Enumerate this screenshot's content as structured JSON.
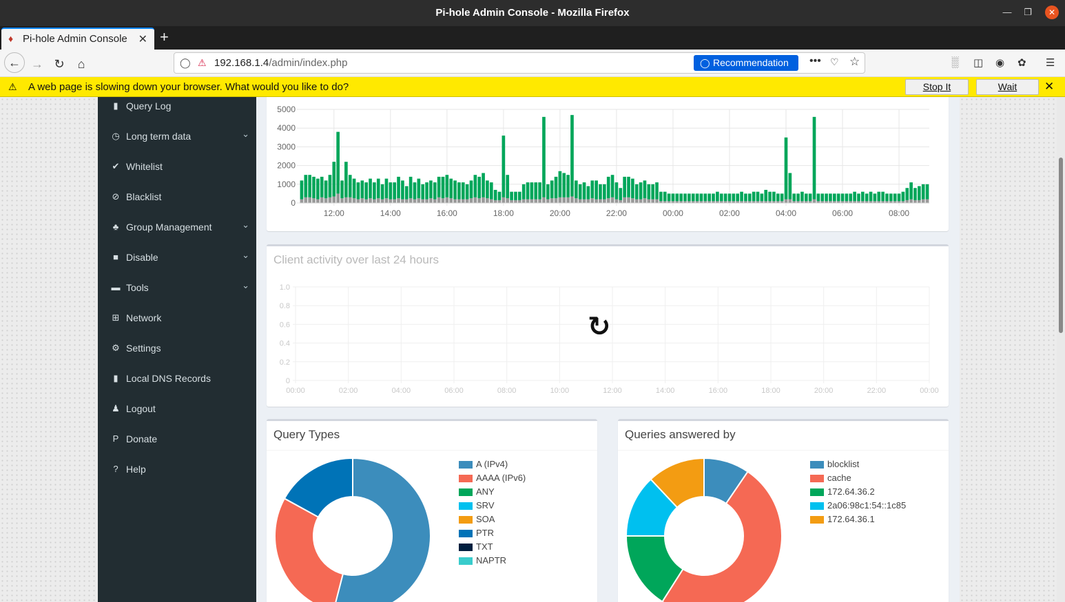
{
  "window": {
    "title": "Pi-hole Admin Console - Mozilla Firefox"
  },
  "tab": {
    "label": "Pi-hole Admin Console"
  },
  "urlbar": {
    "host": "192.168.1.4",
    "path": "/admin/index.php",
    "recommendation": "Recommendation"
  },
  "notification": {
    "text": "A web page is slowing down your browser. What would you like to do?",
    "stop_label": "Stop It",
    "wait_label": "Wait"
  },
  "sidebar": {
    "items": [
      {
        "label": "Query Log",
        "icon": "file-icon",
        "glyph": "▮",
        "has_submenu": false
      },
      {
        "label": "Long term data",
        "icon": "clock-icon",
        "glyph": "◷",
        "has_submenu": true
      },
      {
        "label": "Whitelist",
        "icon": "check-circle-icon",
        "glyph": "✔",
        "has_submenu": false
      },
      {
        "label": "Blacklist",
        "icon": "ban-icon",
        "glyph": "⊘",
        "has_submenu": false
      },
      {
        "label": "Group Management",
        "icon": "users-icon",
        "glyph": "♣",
        "has_submenu": true
      },
      {
        "label": "Disable",
        "icon": "stop-icon",
        "glyph": "■",
        "has_submenu": true
      },
      {
        "label": "Tools",
        "icon": "folder-icon",
        "glyph": "▬",
        "has_submenu": true
      },
      {
        "label": "Network",
        "icon": "network-icon",
        "glyph": "⊞",
        "has_submenu": false
      },
      {
        "label": "Settings",
        "icon": "cogs-icon",
        "glyph": "⚙",
        "has_submenu": false
      },
      {
        "label": "Local DNS Records",
        "icon": "address-book-icon",
        "glyph": "▮",
        "has_submenu": false
      },
      {
        "label": "Logout",
        "icon": "user-times-icon",
        "glyph": "♟",
        "has_submenu": false
      },
      {
        "label": "Donate",
        "icon": "paypal-icon",
        "glyph": "P",
        "has_submenu": false
      },
      {
        "label": "Help",
        "icon": "question-circle-icon",
        "glyph": "?",
        "has_submenu": false
      }
    ]
  },
  "client_activity": {
    "title": "Client activity over last 24 hours"
  },
  "query_types": {
    "title": "Query Types"
  },
  "answered_by": {
    "title": "Queries answered by"
  },
  "chart_data": [
    {
      "type": "bar",
      "title": "",
      "x_tick_labels": [
        "12:00",
        "14:00",
        "16:00",
        "18:00",
        "20:00",
        "22:00",
        "00:00",
        "02:00",
        "04:00",
        "06:00",
        "08:00"
      ],
      "y_tick_labels": [
        "0",
        "1000",
        "2000",
        "3000",
        "4000",
        "5000"
      ],
      "ylim": [
        0,
        5000
      ],
      "grid": true,
      "series": [
        {
          "color": "#00a65a",
          "values": [
            1200,
            1500,
            1500,
            1400,
            1300,
            1400,
            1200,
            1500,
            2200,
            3800,
            1200,
            2200,
            1500,
            1300,
            1100,
            1200,
            1100,
            1300,
            1100,
            1300,
            1000,
            1300,
            1100,
            1100,
            1400,
            1200,
            900,
            1400,
            1100,
            1300,
            1000,
            1100,
            1200,
            1100,
            1400,
            1400,
            1500,
            1300,
            1200,
            1100,
            1100,
            1000,
            1200,
            1500,
            1400,
            1600,
            1200,
            1100,
            700,
            600,
            3600,
            1500,
            600,
            600,
            600,
            1000,
            1100,
            1100,
            1100,
            1100,
            4600,
            1000,
            1200,
            1400,
            1700,
            1600,
            1500,
            4700,
            1200,
            1000,
            1100,
            900,
            1200,
            1200,
            1000,
            1000,
            1400,
            1500,
            1100,
            800,
            1400,
            1400,
            1300,
            1000,
            1100,
            1200,
            1000,
            1000,
            1100,
            600,
            600,
            500,
            500,
            500,
            500,
            500,
            500,
            500,
            500,
            500,
            500,
            500,
            500,
            600,
            500,
            500,
            500,
            500,
            500,
            600,
            500,
            500,
            600,
            600,
            500,
            700,
            600,
            600,
            500,
            500,
            3500,
            1600,
            500,
            500,
            600,
            500,
            500,
            4600,
            500,
            500,
            500,
            500,
            500,
            500,
            500,
            500,
            500,
            600,
            500,
            600,
            500,
            600,
            500,
            600,
            600,
            500,
            500,
            500,
            500,
            600,
            800,
            1100,
            800,
            900,
            1000,
            1000
          ]
        },
        {
          "color": "#999999",
          "values": [
            200,
            300,
            300,
            250,
            200,
            300,
            250,
            300,
            350,
            500,
            250,
            300,
            300,
            250,
            200,
            250,
            200,
            250,
            200,
            250,
            200,
            250,
            200,
            200,
            250,
            200,
            200,
            250,
            200,
            250,
            200,
            200,
            250,
            200,
            300,
            250,
            300,
            250,
            200,
            200,
            200,
            200,
            250,
            300,
            250,
            300,
            250,
            200,
            150,
            150,
            300,
            250,
            150,
            150,
            150,
            200,
            200,
            200,
            200,
            200,
            300,
            200,
            250,
            250,
            300,
            300,
            300,
            350,
            250,
            200,
            200,
            200,
            250,
            200,
            200,
            200,
            250,
            300,
            200,
            150,
            300,
            300,
            250,
            200,
            200,
            250,
            200,
            200,
            200,
            100,
            100,
            100,
            100,
            100,
            100,
            100,
            100,
            100,
            100,
            100,
            100,
            100,
            100,
            100,
            100,
            100,
            100,
            100,
            100,
            100,
            100,
            100,
            100,
            100,
            100,
            100,
            100,
            100,
            100,
            100,
            200,
            200,
            100,
            100,
            100,
            100,
            100,
            200,
            100,
            100,
            100,
            100,
            100,
            100,
            100,
            100,
            100,
            100,
            100,
            100,
            100,
            100,
            100,
            100,
            100,
            100,
            100,
            100,
            100,
            100,
            150,
            200,
            150,
            150,
            200,
            200
          ]
        }
      ]
    },
    {
      "type": "line",
      "title": "Client activity over last 24 hours",
      "x_tick_labels": [
        "00:00",
        "02:00",
        "04:00",
        "06:00",
        "08:00",
        "10:00",
        "12:00",
        "14:00",
        "16:00",
        "18:00",
        "20:00",
        "22:00",
        "00:00"
      ],
      "y_tick_labels": [
        "0",
        "0.2",
        "0.4",
        "0.6",
        "0.8",
        "1.0"
      ],
      "ylim": [
        0,
        1
      ],
      "grid": true,
      "series": []
    },
    {
      "type": "pie",
      "title": "Query Types",
      "labels": [
        "A (IPv4)",
        "AAAA (IPv6)",
        "ANY",
        "SRV",
        "SOA",
        "PTR",
        "TXT",
        "NAPTR"
      ],
      "values": [
        54,
        29,
        0,
        0,
        0,
        17,
        0,
        0
      ],
      "colors": [
        "#3c8dbc",
        "#f56954",
        "#00a65a",
        "#00c0ef",
        "#f39c12",
        "#0073b7",
        "#001f3f",
        "#39cccc"
      ]
    },
    {
      "type": "pie",
      "title": "Queries answered by",
      "labels": [
        "blocklist",
        "cache",
        "172.64.36.2",
        "2a06:98c1:54::1c85",
        "172.64.36.1"
      ],
      "values": [
        9.5,
        49.5,
        16,
        13,
        12
      ],
      "colors": [
        "#3c8dbc",
        "#f56954",
        "#00a65a",
        "#00c0ef",
        "#f39c12"
      ]
    }
  ]
}
